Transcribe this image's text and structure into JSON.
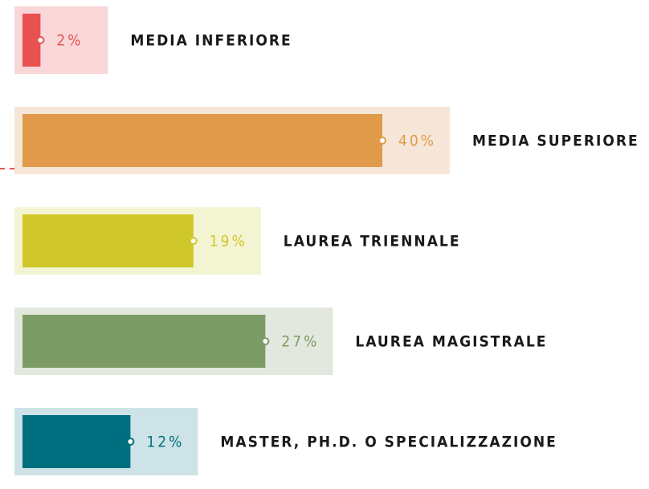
{
  "chart_data": {
    "type": "bar",
    "categories": [
      "MEDIA INFERIORE",
      "MEDIA SUPERIORE",
      "LAUREA TRIENNALE",
      "LAUREA MAGISTRALE",
      "MASTER, PH.D. O SPECIALIZZAZIONE"
    ],
    "values": [
      2,
      40,
      19,
      27,
      12
    ],
    "value_labels": [
      "2%",
      "40%",
      "19%",
      "27%",
      "12%"
    ],
    "colors": [
      "#e8524f",
      "#e09a4a",
      "#d0c72a",
      "#7d9c65",
      "#006f7f"
    ],
    "background_colors": [
      "#f9d6d8",
      "#f6e6d8",
      "#f3f4d2",
      "#e3e8de",
      "#cde3e7"
    ]
  }
}
